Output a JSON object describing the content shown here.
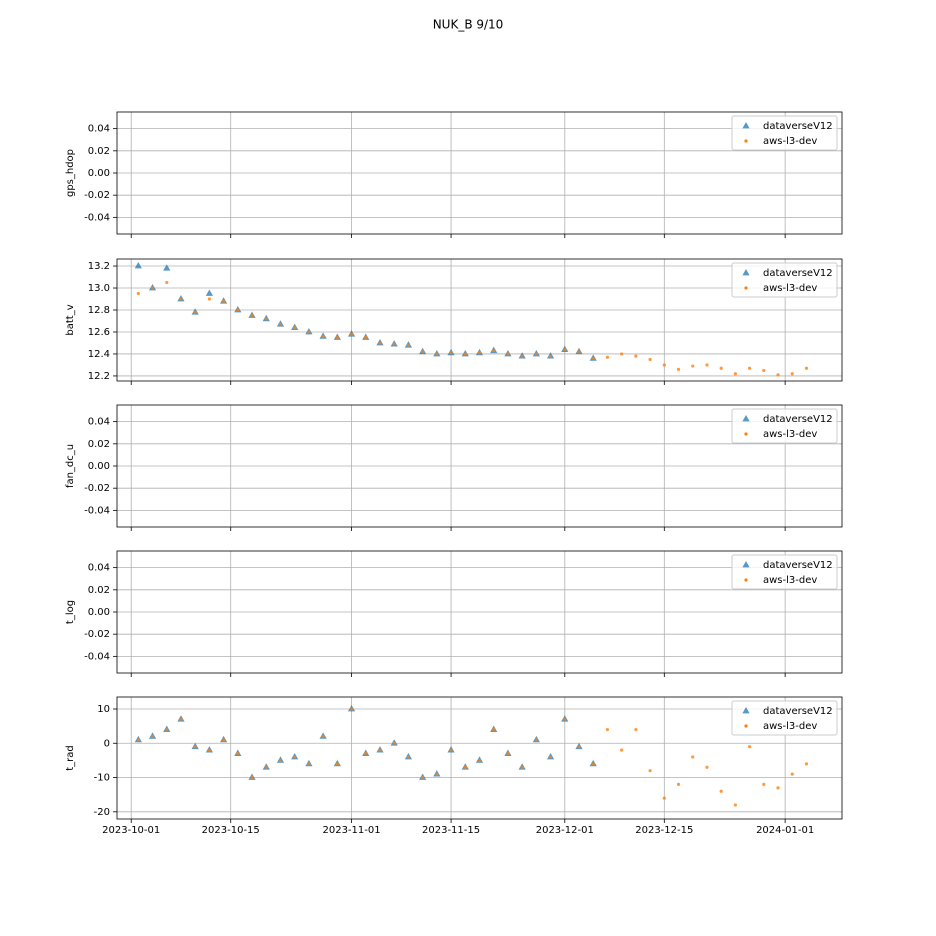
{
  "title": "NUK_B 9/10",
  "chart_data": [
    {
      "type": "scatter",
      "ylabel": "gps_hdop",
      "grid": true,
      "legend": "upper right",
      "x": [],
      "series": [
        {
          "name": "dataverseV12",
          "color": "#1f77b4",
          "marker": "triangle",
          "values": []
        },
        {
          "name": "aws-l3-dev",
          "color": "#ff7f0e",
          "marker": "dot",
          "values": []
        }
      ],
      "xlim": [
        "2023-09-29",
        "2024-01-09"
      ],
      "xticks": [
        "2023-10-01",
        "2023-10-15",
        "2023-11-01",
        "2023-11-15",
        "2023-12-01",
        "2023-12-15",
        "2024-01-01"
      ],
      "ylim": [
        -0.055,
        0.055
      ],
      "yticks": [
        0.04,
        0.02,
        {
          "value": 0,
          "label": "0.00"
        },
        -0.02,
        -0.04
      ]
    },
    {
      "type": "scatter",
      "ylabel": "batt_v",
      "grid": true,
      "legend": "upper right",
      "x": [
        "2023-10-02",
        "2023-10-04",
        "2023-10-06",
        "2023-10-08",
        "2023-10-10",
        "2023-10-12",
        "2023-10-14",
        "2023-10-16",
        "2023-10-18",
        "2023-10-20",
        "2023-10-22",
        "2023-10-24",
        "2023-10-26",
        "2023-10-28",
        "2023-10-30",
        "2023-11-01",
        "2023-11-03",
        "2023-11-05",
        "2023-11-07",
        "2023-11-09",
        "2023-11-11",
        "2023-11-13",
        "2023-11-15",
        "2023-11-17",
        "2023-11-19",
        "2023-11-21",
        "2023-11-23",
        "2023-11-25",
        "2023-11-27",
        "2023-11-29",
        "2023-12-01",
        "2023-12-03",
        "2023-12-05",
        "2023-12-07",
        "2023-12-09",
        "2023-12-11",
        "2023-12-13",
        "2023-12-15",
        "2023-12-17",
        "2023-12-19",
        "2023-12-21",
        "2023-12-23",
        "2023-12-25",
        "2023-12-27",
        "2023-12-29",
        "2023-12-31",
        "2024-01-02",
        "2024-01-04"
      ],
      "series": [
        {
          "name": "dataverseV12",
          "color": "#1f77b4",
          "marker": "triangle",
          "values": [
            13.2,
            13.0,
            13.18,
            12.9,
            12.78,
            12.95,
            12.88,
            12.8,
            12.75,
            12.72,
            12.67,
            12.64,
            12.6,
            12.56,
            12.55,
            12.58,
            12.55,
            12.5,
            12.49,
            12.48,
            12.42,
            12.4,
            12.41,
            12.4,
            12.41,
            12.43,
            12.4,
            12.38,
            12.4,
            12.38,
            12.44,
            12.42,
            12.36,
            null,
            null,
            null,
            null,
            null,
            null,
            null,
            null,
            null,
            null,
            null,
            null,
            null,
            null,
            null
          ]
        },
        {
          "name": "aws-l3-dev",
          "color": "#ff7f0e",
          "marker": "dot",
          "values": [
            12.95,
            13.0,
            13.05,
            12.9,
            12.78,
            12.9,
            12.88,
            12.8,
            12.75,
            12.72,
            12.67,
            12.64,
            12.6,
            12.56,
            12.55,
            12.58,
            12.55,
            12.5,
            12.49,
            12.48,
            12.42,
            12.4,
            12.41,
            12.4,
            12.41,
            12.43,
            12.4,
            12.38,
            12.4,
            12.38,
            12.44,
            12.42,
            12.36,
            12.37,
            12.4,
            12.38,
            12.35,
            12.3,
            12.26,
            12.29,
            12.3,
            12.27,
            12.22,
            12.27,
            12.25,
            12.21,
            12.22,
            12.27
          ]
        }
      ],
      "xlim": [
        "2023-09-29",
        "2024-01-09"
      ],
      "xticks": [
        "2023-10-01",
        "2023-10-15",
        "2023-11-01",
        "2023-11-15",
        "2023-12-01",
        "2023-12-15",
        "2024-01-01"
      ],
      "ylim": [
        12.154,
        13.264
      ],
      "yticks": [
        12.2,
        12.4,
        12.6,
        12.8,
        {
          "value": 13,
          "label": "13.0"
        },
        13.2
      ]
    },
    {
      "type": "scatter",
      "ylabel": "fan_dc_u",
      "grid": true,
      "legend": "upper right",
      "x": [],
      "series": [
        {
          "name": "dataverseV12",
          "color": "#1f77b4",
          "marker": "triangle",
          "values": []
        },
        {
          "name": "aws-l3-dev",
          "color": "#ff7f0e",
          "marker": "dot",
          "values": []
        }
      ],
      "xlim": [
        "2023-09-29",
        "2024-01-09"
      ],
      "xticks": [
        "2023-10-01",
        "2023-10-15",
        "2023-11-01",
        "2023-11-15",
        "2023-12-01",
        "2023-12-15",
        "2024-01-01"
      ],
      "ylim": [
        -0.055,
        0.055
      ],
      "yticks": [
        0.04,
        0.02,
        {
          "value": 0,
          "label": "0.00"
        },
        -0.02,
        -0.04
      ]
    },
    {
      "type": "scatter",
      "ylabel": "t_log",
      "grid": true,
      "legend": "upper right",
      "x": [],
      "series": [
        {
          "name": "dataverseV12",
          "color": "#1f77b4",
          "marker": "triangle",
          "values": []
        },
        {
          "name": "aws-l3-dev",
          "color": "#ff7f0e",
          "marker": "dot",
          "values": []
        }
      ],
      "xlim": [
        "2023-09-29",
        "2024-01-09"
      ],
      "xticks": [
        "2023-10-01",
        "2023-10-15",
        "2023-11-01",
        "2023-11-15",
        "2023-12-01",
        "2023-12-15",
        "2024-01-01"
      ],
      "ylim": [
        -0.055,
        0.055
      ],
      "yticks": [
        0.04,
        0.02,
        {
          "value": 0,
          "label": "0.00"
        },
        -0.02,
        -0.04
      ]
    },
    {
      "type": "scatter",
      "ylabel": "t_rad",
      "grid": true,
      "legend": "upper right",
      "show_xticklabels": true,
      "x": [
        "2023-10-02",
        "2023-10-04",
        "2023-10-06",
        "2023-10-08",
        "2023-10-10",
        "2023-10-12",
        "2023-10-14",
        "2023-10-16",
        "2023-10-18",
        "2023-10-20",
        "2023-10-22",
        "2023-10-24",
        "2023-10-26",
        "2023-10-28",
        "2023-10-30",
        "2023-11-01",
        "2023-11-03",
        "2023-11-05",
        "2023-11-07",
        "2023-11-09",
        "2023-11-11",
        "2023-11-13",
        "2023-11-15",
        "2023-11-17",
        "2023-11-19",
        "2023-11-21",
        "2023-11-23",
        "2023-11-25",
        "2023-11-27",
        "2023-11-29",
        "2023-12-01",
        "2023-12-03",
        "2023-12-05",
        "2023-12-07",
        "2023-12-09",
        "2023-12-11",
        "2023-12-13",
        "2023-12-15",
        "2023-12-17",
        "2023-12-19",
        "2023-12-21",
        "2023-12-23",
        "2023-12-25",
        "2023-12-27",
        "2023-12-29",
        "2023-12-31",
        "2024-01-02",
        "2024-01-04"
      ],
      "series": [
        {
          "name": "dataverseV12",
          "color": "#1f77b4",
          "marker": "triangle",
          "values": [
            1,
            2,
            4,
            7,
            -1,
            -2,
            1,
            -3,
            -10,
            -7,
            -5,
            -4,
            -6,
            2,
            -6,
            10,
            -3,
            -2,
            0,
            -4,
            -10,
            -9,
            -2,
            -7,
            -5,
            4,
            -3,
            -7,
            1,
            -4,
            7,
            -1,
            -6,
            null,
            null,
            null,
            null,
            null,
            null,
            null,
            null,
            null,
            null,
            null,
            null,
            null,
            null,
            null
          ]
        },
        {
          "name": "aws-l3-dev",
          "color": "#ff7f0e",
          "marker": "dot",
          "values": [
            1,
            2,
            4,
            7,
            -1,
            -2,
            1,
            -3,
            -10,
            -7,
            -5,
            -4,
            -6,
            2,
            -6,
            10,
            -3,
            -2,
            0,
            -4,
            -10,
            -9,
            -2,
            -7,
            -5,
            4,
            -3,
            -7,
            1,
            -4,
            7,
            -1,
            -6,
            4,
            -2,
            4,
            -8,
            -16,
            -12,
            -4,
            -7,
            -14,
            -18,
            -1,
            -12,
            -13,
            -9,
            -6
          ]
        }
      ],
      "xlim": [
        "2023-09-29",
        "2024-01-09"
      ],
      "xticks": [
        "2023-10-01",
        "2023-10-15",
        "2023-11-01",
        "2023-11-15",
        "2023-12-01",
        "2023-12-15",
        "2024-01-01"
      ],
      "ylim": [
        -22.1,
        13.5
      ],
      "yticks": [
        -20,
        -10,
        0,
        10
      ]
    }
  ]
}
